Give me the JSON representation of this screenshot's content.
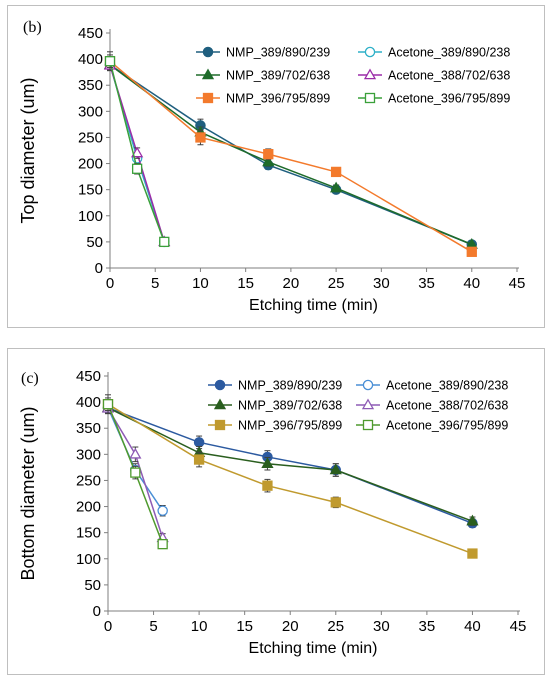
{
  "chart_data": [
    {
      "type": "line",
      "panel_label": "(b)",
      "xlabel": "Etching time (min)",
      "ylabel": "Top diameter (um)",
      "xlim": [
        0,
        45
      ],
      "ylim": [
        0,
        450
      ],
      "xticks": [
        0,
        5,
        10,
        15,
        20,
        25,
        30,
        35,
        40,
        45
      ],
      "yticks": [
        0,
        50,
        100,
        150,
        200,
        250,
        300,
        350,
        400,
        450
      ],
      "grid": false,
      "legend_position": "top-right",
      "series": [
        {
          "name": "NMP_389/890/239",
          "color": "#1f5f7f",
          "marker": "circle",
          "filled": true,
          "x": [
            0,
            10,
            17.5,
            25,
            40
          ],
          "y": [
            389,
            273,
            197,
            150,
            45
          ],
          "err": [
            10,
            12,
            8,
            6,
            3
          ]
        },
        {
          "name": "Acetone_389/890/238",
          "color": "#2eb0c8",
          "marker": "circle",
          "filled": false,
          "x": [
            0,
            3,
            6
          ],
          "y": [
            389,
            210,
            50
          ],
          "err": [
            10,
            8,
            4
          ]
        },
        {
          "name": "NMP_389/702/638",
          "color": "#1e6b2a",
          "marker": "triangle",
          "filled": true,
          "x": [
            0,
            10,
            17.5,
            25,
            40
          ],
          "y": [
            389,
            260,
            203,
            153,
            45
          ],
          "err": [
            10,
            10,
            8,
            6,
            3
          ]
        },
        {
          "name": "Acetone_388/702/638",
          "color": "#9b2da8",
          "marker": "triangle",
          "filled": false,
          "x": [
            0,
            3,
            6
          ],
          "y": [
            388,
            220,
            50
          ],
          "err": [
            10,
            10,
            4
          ]
        },
        {
          "name": "NMP_396/795/899",
          "color": "#f37a2c",
          "marker": "square",
          "filled": true,
          "x": [
            0,
            10,
            17.5,
            25,
            40
          ],
          "y": [
            396,
            250,
            218,
            184,
            31
          ],
          "err": [
            18,
            14,
            10,
            8,
            3
          ]
        },
        {
          "name": "Acetone_396/795/899",
          "color": "#3aa03a",
          "marker": "square",
          "filled": false,
          "x": [
            0,
            3,
            6
          ],
          "y": [
            396,
            190,
            50
          ],
          "err": [
            12,
            10,
            4
          ]
        }
      ]
    },
    {
      "type": "line",
      "panel_label": "(c)",
      "xlabel": "Etching time (min)",
      "ylabel": "Bottom diameter (um)",
      "xlim": [
        0,
        45
      ],
      "ylim": [
        0,
        450
      ],
      "xticks": [
        0,
        5,
        10,
        15,
        20,
        25,
        30,
        35,
        40,
        45
      ],
      "yticks": [
        0,
        50,
        100,
        150,
        200,
        250,
        300,
        350,
        400,
        450
      ],
      "grid": false,
      "legend_position": "top-right",
      "series": [
        {
          "name": "NMP_389/890/239",
          "color": "#2c5aa0",
          "marker": "circle",
          "filled": true,
          "x": [
            0,
            10,
            17.5,
            25,
            40
          ],
          "y": [
            389,
            323,
            295,
            270,
            168
          ],
          "err": [
            10,
            12,
            12,
            12,
            8
          ]
        },
        {
          "name": "Acetone_389/890/238",
          "color": "#4a8fd6",
          "marker": "circle",
          "filled": false,
          "x": [
            0,
            3,
            6
          ],
          "y": [
            389,
            270,
            192
          ],
          "err": [
            10,
            12,
            10
          ]
        },
        {
          "name": "NMP_389/702/638",
          "color": "#2a5e1e",
          "marker": "triangle",
          "filled": true,
          "x": [
            0,
            10,
            17.5,
            25,
            40
          ],
          "y": [
            389,
            303,
            282,
            270,
            172
          ],
          "err": [
            10,
            12,
            12,
            12,
            8
          ]
        },
        {
          "name": "Acetone_388/702/638",
          "color": "#8e5bb5",
          "marker": "triangle",
          "filled": false,
          "x": [
            0,
            3,
            6
          ],
          "y": [
            388,
            300,
            140
          ],
          "err": [
            10,
            14,
            8
          ]
        },
        {
          "name": "NMP_396/795/899",
          "color": "#c09a2e",
          "marker": "square",
          "filled": true,
          "x": [
            0,
            10,
            17.5,
            25,
            40
          ],
          "y": [
            396,
            290,
            240,
            208,
            110
          ],
          "err": [
            18,
            14,
            12,
            10,
            5
          ]
        },
        {
          "name": "Acetone_396/795/899",
          "color": "#4f9a2e",
          "marker": "square",
          "filled": false,
          "x": [
            0,
            3,
            6
          ],
          "y": [
            396,
            265,
            128
          ],
          "err": [
            12,
            12,
            8
          ]
        }
      ]
    }
  ]
}
